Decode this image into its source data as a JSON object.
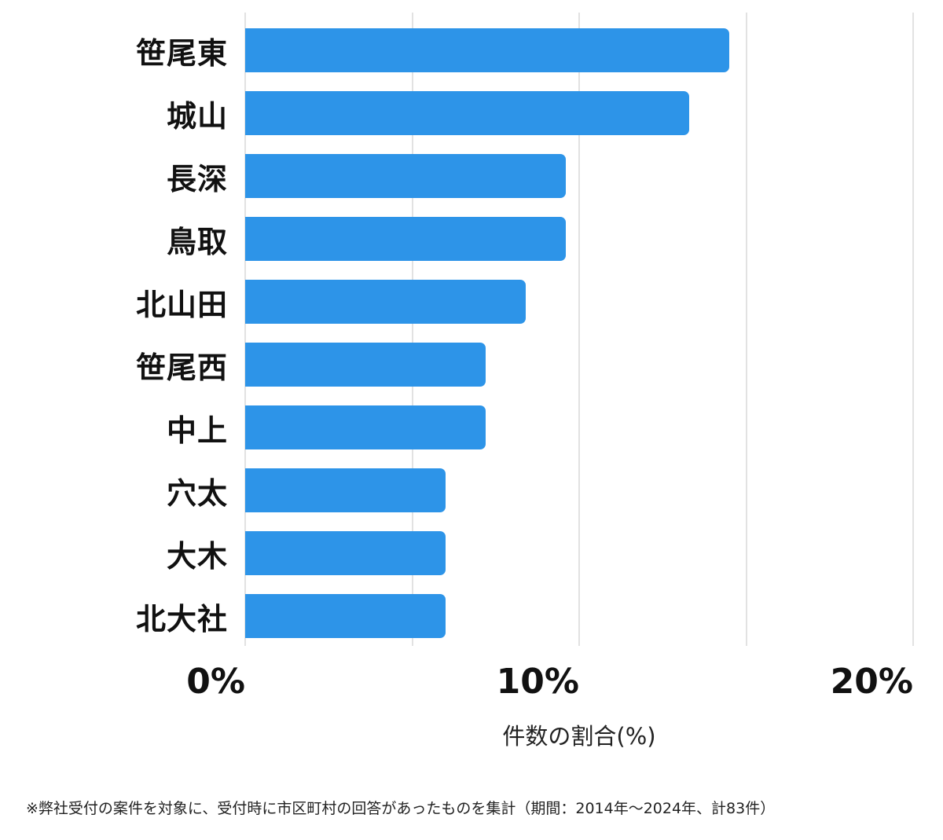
{
  "chart_data": {
    "type": "bar",
    "orientation": "horizontal",
    "title": "",
    "categories": [
      "笹尾東",
      "城山",
      "長深",
      "鳥取",
      "北山田",
      "笹尾西",
      "中上",
      "穴太",
      "大木",
      "北大社"
    ],
    "values": [
      14.5,
      13.3,
      9.6,
      9.6,
      8.4,
      7.2,
      7.2,
      6.0,
      6.0,
      6.0
    ],
    "xlabel": "件数の割合(%)",
    "ylabel": "",
    "xlim": [
      0,
      20
    ],
    "x_ticks": [
      {
        "value": 0,
        "label": "0%"
      },
      {
        "value": 10,
        "label": "10%"
      },
      {
        "value": 20,
        "label": "20%"
      }
    ],
    "gridline_step": 5,
    "grid": true,
    "legend": "none",
    "bar_color": "#2d94e8",
    "gridline_color": "#e2e2e2",
    "text_color": "#111111"
  },
  "footnote": "※弊社受付の案件を対象に、受付時に市区町村の回答があったものを集計（期間：2014年～2024年、計83件）"
}
